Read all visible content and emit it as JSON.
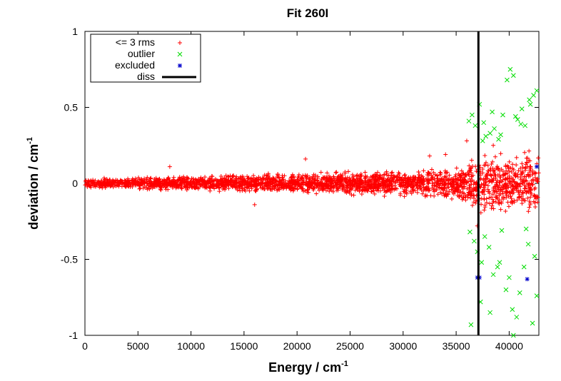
{
  "chart_data": {
    "type": "scatter",
    "title": "Fit 260I",
    "xlabel_base": "Energy / cm",
    "xlabel_sup": "-1",
    "ylabel_base": "deviation / cm",
    "ylabel_sup": "-1",
    "xlim": [
      0,
      42800
    ],
    "ylim": [
      -1,
      1
    ],
    "xticks": [
      0,
      5000,
      10000,
      15000,
      20000,
      25000,
      30000,
      35000,
      40000
    ],
    "yticks": [
      -1,
      -0.5,
      0,
      0.5,
      1
    ],
    "ytick_labels": [
      "-1",
      "-0.5",
      "0",
      "0.5",
      "1"
    ],
    "legend_position": "top-left",
    "series": [
      {
        "name": "<= 3 rms",
        "marker": "+",
        "color": "#ff0000",
        "band": [
          [
            0,
            0.04
          ],
          [
            5000,
            0.05
          ],
          [
            10000,
            0.06
          ],
          [
            15000,
            0.07
          ],
          [
            20000,
            0.08
          ],
          [
            25000,
            0.09
          ],
          [
            30000,
            0.1
          ],
          [
            35000,
            0.13
          ],
          [
            37000,
            0.22
          ],
          [
            42800,
            0.27
          ]
        ],
        "values_note_points": [
          [
            8000,
            0.11
          ],
          [
            16000,
            -0.14
          ],
          [
            20800,
            0.16
          ],
          [
            32500,
            0.18
          ],
          [
            34000,
            0.19
          ],
          [
            36000,
            0.28
          ],
          [
            37000,
            -0.28
          ],
          [
            38500,
            0.25
          ]
        ]
      },
      {
        "name": "outlier",
        "marker": "x",
        "color": "#00dd00",
        "points": [
          [
            36200,
            0.41
          ],
          [
            36500,
            0.45
          ],
          [
            36800,
            0.38
          ],
          [
            37200,
            0.52
          ],
          [
            37500,
            0.28
          ],
          [
            37800,
            0.31
          ],
          [
            38200,
            0.33
          ],
          [
            38600,
            0.36
          ],
          [
            39000,
            0.29
          ],
          [
            39400,
            0.45
          ],
          [
            39800,
            0.68
          ],
          [
            40100,
            0.75
          ],
          [
            40400,
            0.71
          ],
          [
            40800,
            0.42
          ],
          [
            41100,
            0.39
          ],
          [
            41500,
            0.38
          ],
          [
            41900,
            0.55
          ],
          [
            42300,
            0.58
          ],
          [
            42600,
            0.61
          ],
          [
            37600,
            0.4
          ],
          [
            38400,
            0.47
          ],
          [
            39200,
            0.32
          ],
          [
            40600,
            0.44
          ],
          [
            41200,
            0.49
          ],
          [
            42000,
            0.52
          ],
          [
            36300,
            -0.32
          ],
          [
            36700,
            -0.38
          ],
          [
            37000,
            -0.45
          ],
          [
            37400,
            -0.52
          ],
          [
            37700,
            -0.35
          ],
          [
            38100,
            -0.42
          ],
          [
            38500,
            -0.6
          ],
          [
            38900,
            -0.55
          ],
          [
            39300,
            -0.31
          ],
          [
            39700,
            -0.7
          ],
          [
            40000,
            -0.62
          ],
          [
            40300,
            -0.83
          ],
          [
            40700,
            -0.88
          ],
          [
            41000,
            -0.72
          ],
          [
            41400,
            -0.55
          ],
          [
            41800,
            -0.4
          ],
          [
            42200,
            -0.92
          ],
          [
            42600,
            -0.74
          ],
          [
            36400,
            -0.93
          ],
          [
            37300,
            -0.78
          ],
          [
            38200,
            -0.85
          ],
          [
            39100,
            -0.52
          ],
          [
            40400,
            -1.0
          ],
          [
            41600,
            -0.3
          ],
          [
            42400,
            -0.48
          ]
        ]
      },
      {
        "name": "excluded",
        "marker": "*",
        "color": "#0000cc",
        "points": [
          [
            37000,
            -0.62
          ],
          [
            37200,
            -0.62
          ],
          [
            41700,
            -0.63
          ],
          [
            42600,
            0.11
          ]
        ]
      },
      {
        "name": "diss",
        "marker": "line",
        "color": "#000000",
        "x": 37100
      }
    ]
  }
}
